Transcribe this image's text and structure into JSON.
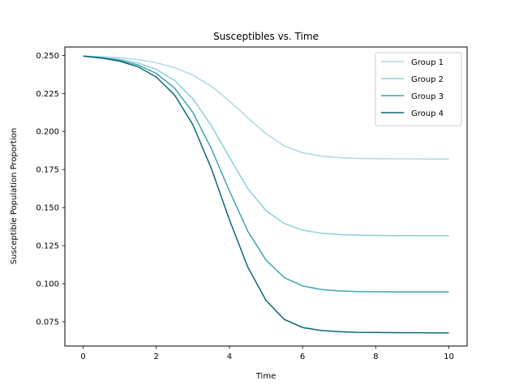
{
  "chart_data": {
    "type": "line",
    "title": "Susceptibles vs. Time",
    "xlabel": "Time",
    "ylabel": "Susceptible Population Proportion",
    "xlim": [
      -0.5,
      10.5
    ],
    "ylim": [
      0.059,
      0.2555
    ],
    "xticks": [
      0,
      2,
      4,
      6,
      8,
      10
    ],
    "yticks": [
      0.075,
      0.1,
      0.125,
      0.15,
      0.175,
      0.2,
      0.225,
      0.25
    ],
    "ytick_labels": [
      "0.075",
      "0.100",
      "0.125",
      "0.150",
      "0.175",
      "0.200",
      "0.225",
      "0.250"
    ],
    "grid": false,
    "legend_position": "top-right",
    "series": [
      {
        "name": "Group 1",
        "color": "#add8e6",
        "x": [
          0,
          0.5,
          1,
          1.5,
          2,
          2.5,
          3,
          3.5,
          4,
          4.5,
          5,
          5.5,
          6,
          6.5,
          7,
          7.5,
          8,
          8.5,
          9,
          9.5,
          10
        ],
        "y": [
          0.2495,
          0.2491,
          0.2484,
          0.2472,
          0.2452,
          0.242,
          0.237,
          0.2297,
          0.22,
          0.209,
          0.1985,
          0.1905,
          0.186,
          0.1838,
          0.1828,
          0.1823,
          0.1821,
          0.182,
          0.182,
          0.1819,
          0.1819
        ]
      },
      {
        "name": "Group 2",
        "color": "#8ccfdc",
        "x": [
          0,
          0.5,
          1,
          1.5,
          2,
          2.5,
          3,
          3.5,
          4,
          4.5,
          5,
          5.5,
          6,
          6.5,
          7,
          7.5,
          8,
          8.5,
          9,
          9.5,
          10
        ],
        "y": [
          0.2495,
          0.2487,
          0.2474,
          0.245,
          0.2408,
          0.2335,
          0.2215,
          0.204,
          0.183,
          0.1625,
          0.148,
          0.1395,
          0.1352,
          0.1332,
          0.1323,
          0.1319,
          0.1317,
          0.1316,
          0.1316,
          0.1315,
          0.1315
        ]
      },
      {
        "name": "Group 3",
        "color": "#3da3b3",
        "x": [
          0,
          0.5,
          1,
          1.5,
          2,
          2.5,
          3,
          3.5,
          4,
          4.5,
          5,
          5.5,
          6,
          6.5,
          7,
          7.5,
          8,
          8.5,
          9,
          9.5,
          10
        ],
        "y": [
          0.2495,
          0.2485,
          0.2468,
          0.2437,
          0.2382,
          0.2285,
          0.2125,
          0.189,
          0.161,
          0.1345,
          0.1155,
          0.104,
          0.0985,
          0.0962,
          0.0952,
          0.0948,
          0.0947,
          0.0946,
          0.0946,
          0.0946,
          0.0946
        ]
      },
      {
        "name": "Group 4",
        "color": "#0f6678",
        "x": [
          0,
          0.5,
          1,
          1.5,
          2,
          2.5,
          3,
          3.5,
          4,
          4.5,
          5,
          5.5,
          6,
          6.5,
          7,
          7.5,
          8,
          8.5,
          9,
          9.5,
          10
        ],
        "y": [
          0.2495,
          0.2482,
          0.2462,
          0.2425,
          0.2358,
          0.224,
          0.2045,
          0.176,
          0.142,
          0.111,
          0.089,
          0.0765,
          0.0712,
          0.0692,
          0.0684,
          0.068,
          0.0679,
          0.0678,
          0.0678,
          0.0677,
          0.0677
        ]
      }
    ]
  }
}
